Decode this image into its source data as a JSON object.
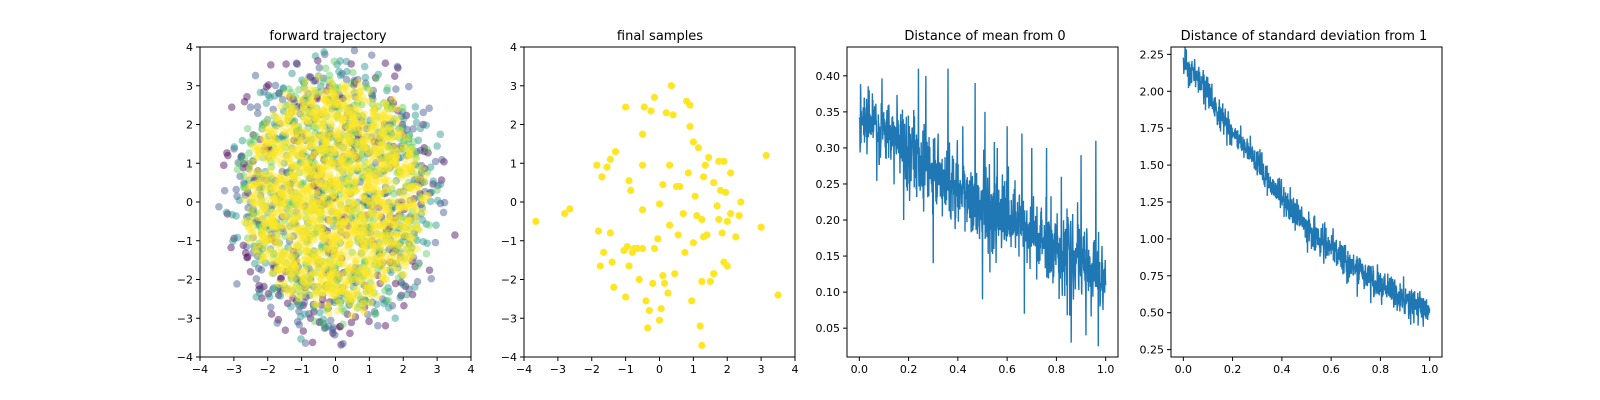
{
  "colors": {
    "line": "#1f77b4",
    "viridis": [
      "#440154",
      "#3b528b",
      "#21918c",
      "#5ec962",
      "#fde725"
    ],
    "sample": "#fde725"
  },
  "chart_data": [
    {
      "type": "scatter",
      "title": "forward trajectory",
      "xlabel": "",
      "ylabel": "",
      "xlim": [
        -4,
        4
      ],
      "ylim": [
        -4,
        4
      ],
      "xticks": [
        "−4",
        "−3",
        "−2",
        "−1",
        "0",
        "1",
        "2",
        "3",
        "4"
      ],
      "yticks": [
        "4",
        "3",
        "2",
        "1",
        "0",
        "−1",
        "−2",
        "−3",
        "−4"
      ],
      "colormap": "viridis",
      "description_of_points": "many semi-transparent points colored by step; early steps dark purple/blue at edges, later steps yellow filling a blob centered near (0,0), radius ~3.5",
      "grid": false
    },
    {
      "type": "scatter",
      "title": "final samples",
      "xlabel": "",
      "ylabel": "",
      "xlim": [
        -4,
        4
      ],
      "ylim": [
        -4,
        4
      ],
      "xticks": [
        "−4",
        "−3",
        "−2",
        "−1",
        "0",
        "1",
        "2",
        "3",
        "4"
      ],
      "yticks": [
        "4",
        "3",
        "2",
        "1",
        "0",
        "−1",
        "−2",
        "−3",
        "−4"
      ],
      "grid": false,
      "points": [
        [
          -3.65,
          -0.5
        ],
        [
          -2.8,
          -0.3
        ],
        [
          -2.65,
          -0.18
        ],
        [
          -1.85,
          0.95
        ],
        [
          -1.8,
          -0.75
        ],
        [
          -1.75,
          -1.65
        ],
        [
          -1.7,
          0.65
        ],
        [
          -1.65,
          -1.3
        ],
        [
          -1.55,
          0.9
        ],
        [
          -1.45,
          -0.8
        ],
        [
          -1.45,
          1.1
        ],
        [
          -1.4,
          -1.55
        ],
        [
          -1.3,
          1.3
        ],
        [
          -1.35,
          -2.2
        ],
        [
          -1.0,
          -2.45
        ],
        [
          -1.0,
          2.45
        ],
        [
          -1.05,
          -1.25
        ],
        [
          -0.95,
          -1.15
        ],
        [
          -0.9,
          -1.65
        ],
        [
          -0.9,
          0.55
        ],
        [
          -0.85,
          0.3
        ],
        [
          -0.8,
          -1.3
        ],
        [
          -0.75,
          -1.2
        ],
        [
          -0.65,
          -1.2
        ],
        [
          -0.6,
          -2.0
        ],
        [
          -0.5,
          -1.2
        ],
        [
          -0.5,
          0.95
        ],
        [
          -0.5,
          1.75
        ],
        [
          -0.5,
          -0.2
        ],
        [
          -0.45,
          2.45
        ],
        [
          -0.4,
          -2.55
        ],
        [
          -0.35,
          -3.25
        ],
        [
          -0.3,
          -2.8
        ],
        [
          -0.25,
          2.35
        ],
        [
          -0.2,
          -2.1
        ],
        [
          -0.15,
          2.7
        ],
        [
          -0.15,
          -1.2
        ],
        [
          -0.05,
          -0.95
        ],
        [
          0.0,
          -0.05
        ],
        [
          0.0,
          -3.05
        ],
        [
          0.05,
          -2.75
        ],
        [
          0.1,
          0.45
        ],
        [
          0.1,
          -1.9
        ],
        [
          0.15,
          -2.1
        ],
        [
          0.2,
          2.3
        ],
        [
          0.25,
          -2.35
        ],
        [
          0.3,
          0.95
        ],
        [
          0.3,
          -0.6
        ],
        [
          0.35,
          3.0
        ],
        [
          0.4,
          2.25
        ],
        [
          0.45,
          -1.85
        ],
        [
          0.5,
          0.4
        ],
        [
          0.55,
          -0.85
        ],
        [
          0.6,
          0.4
        ],
        [
          0.7,
          -0.3
        ],
        [
          0.75,
          -1.3
        ],
        [
          0.8,
          2.6
        ],
        [
          0.85,
          0.75
        ],
        [
          0.9,
          2.5
        ],
        [
          0.9,
          1.95
        ],
        [
          0.95,
          -2.55
        ],
        [
          1.0,
          -1.05
        ],
        [
          1.0,
          1.55
        ],
        [
          1.05,
          0.15
        ],
        [
          1.1,
          -0.35
        ],
        [
          1.15,
          1.4
        ],
        [
          1.2,
          -3.2
        ],
        [
          1.25,
          -0.45
        ],
        [
          1.25,
          -2.05
        ],
        [
          1.25,
          -3.7
        ],
        [
          1.3,
          0.65
        ],
        [
          1.3,
          -0.9
        ],
        [
          1.35,
          0.95
        ],
        [
          1.4,
          -0.85
        ],
        [
          1.45,
          1.15
        ],
        [
          1.5,
          -2.05
        ],
        [
          1.6,
          -1.85
        ],
        [
          1.6,
          0.5
        ],
        [
          1.7,
          -0.1
        ],
        [
          1.75,
          -0.45
        ],
        [
          1.75,
          1.05
        ],
        [
          1.8,
          0.3
        ],
        [
          1.85,
          -0.8
        ],
        [
          1.9,
          1.05
        ],
        [
          1.9,
          -1.55
        ],
        [
          1.95,
          0.25
        ],
        [
          2.0,
          -0.5
        ],
        [
          2.0,
          -1.65
        ],
        [
          2.1,
          -0.3
        ],
        [
          2.1,
          0.75
        ],
        [
          2.25,
          -0.9
        ],
        [
          2.35,
          -0.35
        ],
        [
          2.4,
          0.0
        ],
        [
          3.0,
          -0.65
        ],
        [
          3.15,
          1.2
        ],
        [
          3.5,
          -2.4
        ]
      ]
    },
    {
      "type": "line",
      "title": "Distance of mean from 0",
      "xlabel": "",
      "ylabel": "",
      "xlim": [
        -0.05,
        1.05
      ],
      "ylim": [
        0.01,
        0.44
      ],
      "xticks": [
        "0.0",
        "0.2",
        "0.4",
        "0.6",
        "0.8",
        "1.0"
      ],
      "ytick_values": [
        0.05,
        0.1,
        0.15,
        0.2,
        0.25,
        0.3,
        0.35,
        0.4
      ],
      "yticks": [
        "0.05",
        "0.10",
        "0.15",
        "0.20",
        "0.25",
        "0.30",
        "0.35",
        "0.40"
      ],
      "grid": false,
      "trend_x": [
        0.0,
        0.1,
        0.2,
        0.3,
        0.4,
        0.5,
        0.6,
        0.7,
        0.8,
        0.9,
        1.0
      ],
      "trend_y": [
        0.34,
        0.32,
        0.3,
        0.27,
        0.24,
        0.22,
        0.2,
        0.18,
        0.16,
        0.14,
        0.12
      ],
      "noise_amplitude": 0.06,
      "spikes_x": [
        0.02,
        0.04,
        0.12,
        0.18,
        0.24,
        0.27,
        0.32,
        0.36,
        0.42,
        0.47,
        0.51,
        0.56,
        0.6,
        0.66,
        0.7,
        0.76,
        0.82,
        0.86,
        0.9,
        0.96
      ],
      "spikes_y": [
        0.37,
        0.38,
        0.36,
        0.42,
        0.41,
        0.4,
        0.32,
        0.41,
        0.33,
        0.39,
        0.35,
        0.3,
        0.33,
        0.32,
        0.3,
        0.3,
        0.26,
        0.24,
        0.29,
        0.31
      ],
      "dips_x": [
        0.18,
        0.3,
        0.5,
        0.67,
        0.86,
        0.92,
        0.97
      ],
      "dips_y": [
        0.2,
        0.14,
        0.09,
        0.07,
        0.03,
        0.04,
        0.025
      ]
    },
    {
      "type": "line",
      "title": "Distance of standard deviation from 1",
      "xlabel": "",
      "ylabel": "",
      "xlim": [
        -0.05,
        1.05
      ],
      "ylim": [
        0.2,
        2.3
      ],
      "xticks": [
        "0.0",
        "0.2",
        "0.4",
        "0.6",
        "0.8",
        "1.0"
      ],
      "ytick_values": [
        0.25,
        0.5,
        0.75,
        1.0,
        1.25,
        1.5,
        1.75,
        2.0,
        2.25
      ],
      "yticks": [
        "0.25",
        "0.50",
        "0.75",
        "1.00",
        "1.25",
        "1.50",
        "1.75",
        "2.00",
        "2.25"
      ],
      "grid": false,
      "trend_x": [
        0.0,
        0.05,
        0.1,
        0.2,
        0.3,
        0.4,
        0.5,
        0.6,
        0.7,
        0.8,
        0.9,
        1.0
      ],
      "trend_y": [
        2.2,
        2.1,
        1.98,
        1.72,
        1.5,
        1.28,
        1.08,
        0.93,
        0.8,
        0.68,
        0.58,
        0.5
      ],
      "noise_amplitude": 0.12
    }
  ]
}
